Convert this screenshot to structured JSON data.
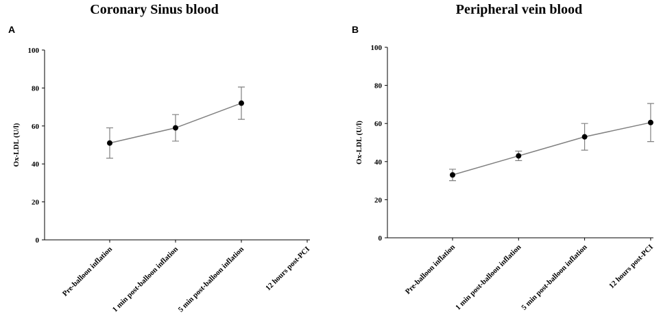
{
  "chart_data": [
    {
      "type": "line",
      "panel": "A",
      "title": "Coronary Sinus blood",
      "y_label": "Ox-LDL (U/l)",
      "categories": [
        "Pre-balloon inflation",
        "1 min post-balloon inflation",
        "5 min post-balloon inflation",
        "12 hours post-PCI"
      ],
      "series": [
        {
          "name": "Ox-LDL",
          "color": "#808080",
          "values": [
            51,
            59,
            72,
            null
          ],
          "errors": [
            8,
            7,
            8.5,
            null
          ]
        }
      ],
      "ylim": [
        0,
        100
      ],
      "yticks": [
        0,
        20,
        40,
        60,
        80,
        100
      ]
    },
    {
      "type": "line",
      "panel": "B",
      "title": "Peripheral vein blood",
      "y_label": "Ox-LDL (U/l)",
      "categories": [
        "Pre-balloon inflation",
        "1 min post-balloon inflation",
        "5 min post-balloon inflation",
        "12 hours post-PCI"
      ],
      "series": [
        {
          "name": "Ox-LDL",
          "color": "#808080",
          "values": [
            33,
            43,
            53,
            60.5
          ],
          "errors": [
            3,
            2.5,
            7,
            10
          ]
        }
      ],
      "ylim": [
        0,
        100
      ],
      "yticks": [
        0,
        20,
        40,
        60,
        80,
        100
      ]
    }
  ]
}
